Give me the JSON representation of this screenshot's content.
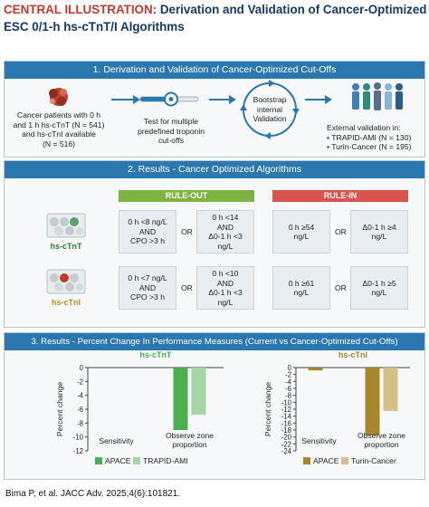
{
  "title": {
    "lead": "CENTRAL ILLUSTRATION:",
    "line1_rest": "Derivation and Validation of Cancer-Optimized",
    "line2": "ESC 0/1-h hs-cTnT/I Algorithms"
  },
  "panel1": {
    "header": "1. Derivation and Validation of Cancer-Optimized Cut-Offs",
    "patients_text": [
      "Cancer patients with 0 h",
      "and 1 h hs-cTnT (N = 541)",
      "and hs-cTnI available",
      "(N = 516)"
    ],
    "test_text": [
      "Test for multiple",
      "predefined troponin",
      "cut-offs"
    ],
    "bootstrap_text": [
      "Bootstrap",
      "internal",
      "Validation"
    ],
    "external_title": "External validation in:",
    "external_items": [
      "• TRAPID-AMI (N = 130)",
      "• Turin-Cancer (N = 195)"
    ]
  },
  "panel2": {
    "header": "2. Results - Cancer Optimized Algorithms",
    "rule_out": "RULE-OUT",
    "rule_in": "RULE-IN",
    "or_label": "OR",
    "rows": [
      {
        "label": "hs-cTnT",
        "ro1": [
          "0 h <8 ng/L",
          "AND",
          "CPO >3 h"
        ],
        "ro2": [
          "0 h <14",
          "AND",
          "Δ0-1 h <3",
          "ng/L"
        ],
        "ri1": [
          "0 h ≥54",
          "ng/L"
        ],
        "ri2": [
          "Δ0-1 h ≥4",
          "ng/L"
        ]
      },
      {
        "label": "hs-cTnI",
        "ro1": [
          "0 h <7 ng/L",
          "AND",
          "CPO >3 h"
        ],
        "ro2": [
          "0 h <10",
          "AND",
          "Δ0-1 h <3",
          "ng/L"
        ],
        "ri1": [
          "0 h ≥61",
          "ng/L"
        ],
        "ri2": [
          "Δ0-1 h ≥5",
          "ng/L"
        ]
      }
    ]
  },
  "panel3": {
    "header": "3. Results - Percent Change In Performance Measures (Current vs Cancer-Optimized Cut-Offs)"
  },
  "chart_data": [
    {
      "type": "bar",
      "title": "hs-cTnT",
      "ylabel": "Percent change",
      "categories": [
        "Sensitivity",
        "Observe zone proportion"
      ],
      "ylim": [
        -12,
        0
      ],
      "yticks": [
        0,
        -2,
        -4,
        -6,
        -8,
        -10,
        -12
      ],
      "series": [
        {
          "name": "APACE",
          "color": "#4caf50",
          "values": [
            0,
            -9
          ]
        },
        {
          "name": "TRAPID-AMI",
          "color": "#a5d6a7",
          "values": [
            0,
            -6.8
          ]
        }
      ]
    },
    {
      "type": "bar",
      "title": "hs-cTnI",
      "ylabel": "Percent change",
      "categories": [
        "Sensitivity",
        "Observe zone proportion"
      ],
      "ylim": [
        -24,
        0
      ],
      "yticks": [
        0,
        -2,
        -4,
        -6,
        -8,
        -10,
        -12,
        -14,
        -16,
        -18,
        -20,
        -22,
        -24
      ],
      "series": [
        {
          "name": "APACE",
          "color": "#a8842a",
          "values": [
            -0.8,
            -19.5
          ]
        },
        {
          "name": "Turin-Cancer",
          "color": "#d6c08a",
          "values": [
            0,
            -12.5
          ]
        }
      ]
    }
  ],
  "footer": "Bima P, et al. JACC Adv. 2025;4(6):101821.",
  "colors": {
    "header_blue": "#2b78b0",
    "title_red": "#c0392b",
    "title_navy": "#123a6b",
    "rule_out_green": "#7cb342",
    "rule_in_red": "#d9534f",
    "tnt_green": "#2e7d32",
    "tni_orange": "#c98a1a"
  }
}
